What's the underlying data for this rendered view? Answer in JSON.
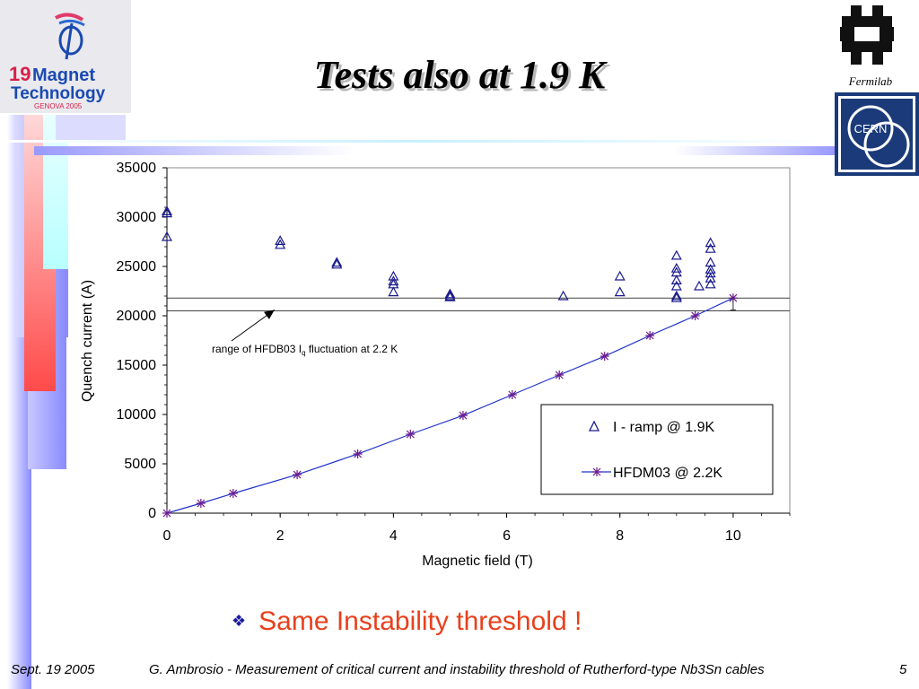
{
  "slide": {
    "title": "Tests also at 1.9 K",
    "bullet": "Same Instability threshold !",
    "footer_date": "Sept. 19 2005",
    "footer_text": "G. Ambrosio - Measurement of critical current and instability threshold of Rutherford-type Nb3Sn cables",
    "page_number": "5"
  },
  "logos": {
    "conference": {
      "line1": "19",
      "line2": "Magnet",
      "line3": "Technology",
      "line4": "GENOVA 2005"
    },
    "fermilab": "Fermilab",
    "cern": "CERN"
  },
  "colors": {
    "accent_blue": "#8a8aff",
    "accent_red": "#ff4a4a",
    "accent_cyan": "#b8ffff",
    "series_triangle": "#1a1a8c",
    "series_line": "#2233cc",
    "series_marker": "#6a1a8c",
    "bullet_text": "#e8401c"
  },
  "chart_data": {
    "type": "scatter",
    "xlabel": "Magnetic field (T)",
    "ylabel": "Quench current (A)",
    "xlim": [
      0,
      11
    ],
    "ylim": [
      0,
      35000
    ],
    "x_ticks": [
      0,
      2,
      4,
      6,
      8,
      10
    ],
    "y_ticks": [
      0,
      5000,
      10000,
      15000,
      20000,
      25000,
      30000,
      35000
    ],
    "grid": false,
    "legend_position": "bottom-right",
    "series": [
      {
        "name": "I - ramp @ 1.9K",
        "marker": "triangle",
        "points": [
          [
            0,
            30600
          ],
          [
            0,
            30400
          ],
          [
            0,
            28000
          ],
          [
            2,
            27600
          ],
          [
            2,
            27200
          ],
          [
            3,
            25400
          ],
          [
            3,
            25200
          ],
          [
            4,
            24000
          ],
          [
            4,
            23500
          ],
          [
            4,
            23200
          ],
          [
            4,
            22400
          ],
          [
            5,
            22200
          ],
          [
            5,
            22000
          ],
          [
            5,
            21900
          ],
          [
            7,
            22000
          ],
          [
            8,
            24000
          ],
          [
            8,
            22400
          ],
          [
            9,
            26100
          ],
          [
            9,
            24800
          ],
          [
            9,
            24400
          ],
          [
            9,
            23600
          ],
          [
            9,
            23000
          ],
          [
            9,
            22000
          ],
          [
            9,
            21800
          ],
          [
            9.4,
            23000
          ],
          [
            9.6,
            27400
          ],
          [
            9.6,
            26800
          ],
          [
            9.6,
            25400
          ],
          [
            9.6,
            24700
          ],
          [
            9.6,
            24300
          ],
          [
            9.6,
            23800
          ],
          [
            9.6,
            23200
          ]
        ]
      },
      {
        "name": "HFDM03 @ 2.2K",
        "marker": "asterisk-line",
        "points": [
          [
            0,
            0
          ],
          [
            0.6,
            1000
          ],
          [
            1.17,
            2000
          ],
          [
            2.3,
            3900
          ],
          [
            3.37,
            6000
          ],
          [
            4.3,
            8000
          ],
          [
            5.23,
            9900
          ],
          [
            6.1,
            12000
          ],
          [
            6.93,
            14000
          ],
          [
            7.73,
            15900
          ],
          [
            8.53,
            18000
          ],
          [
            9.33,
            20000
          ],
          [
            10,
            21800
          ]
        ]
      }
    ],
    "error_bar": {
      "x": 10,
      "y_low": 20600,
      "y_high": 21900
    },
    "range_lines": [
      21800,
      20500
    ],
    "annotation": {
      "text_before": "range of HFDB03 I",
      "subscript": "q",
      "text_after": " fluctuation at 2.2 K",
      "points_to": [
        1.9,
        20600
      ]
    }
  }
}
